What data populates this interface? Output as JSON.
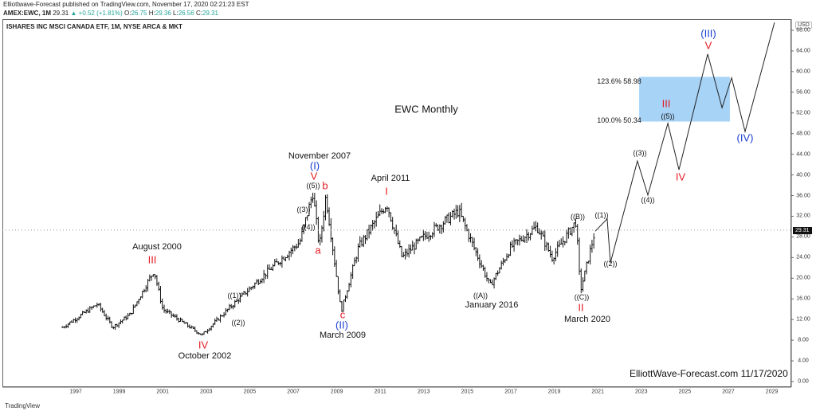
{
  "header": {
    "line1": "Elliottwave-Forecast published on TradingView.com, November 17, 2020 02:21:23 EST",
    "symbol": "AMEX:EWC, 1M",
    "last": "29.31",
    "change": "▲ +0.52 (+1.81%)",
    "o_label": "O:",
    "o": "26.75",
    "h_label": "H:",
    "h": "29.36",
    "l_label": "L:",
    "l": "26.56",
    "c_label": "C:",
    "c": "29.31"
  },
  "chart_title": "ISHARES INC MSCI CANADA ETF, 1M, NYSE ARCA & MKT",
  "currency": "USD",
  "price_tag": "29.31",
  "watermark": "ElliottWave-Forecast.com 11/17/2020",
  "footer": "TradingView",
  "labels": {
    "august_2000": "August 2000",
    "iii_2000": "III",
    "oct_2002": "October 2002",
    "iv_2002": "IV",
    "nov_2007": "November 2007",
    "wave_I_blue": "(I)",
    "v_2007": "V",
    "w5_2007": "((5))",
    "b": "b",
    "w3_2007": "((3))",
    "w4_2007": "((4))",
    "a": "a",
    "c": "c",
    "wave_II_blue": "(II)",
    "mar_2009": "March 2009",
    "apr_2011": "April 2011",
    "i_2011": "I",
    "w1_2004": "((1))",
    "w2_2004": "((2))",
    "wA": "((A))",
    "jan_2016": "January 2016",
    "wB": "((B))",
    "w1_2020": "((1))",
    "wC": "((C))",
    "ii_2020": "II",
    "mar_2020": "March 2020",
    "w2_proj": "((2))",
    "w3_proj": "((3))",
    "w4_proj": "((4))",
    "iii_proj": "III",
    "w5_proj": "((5))",
    "iv_proj": "IV",
    "v_proj": "V",
    "wave_III_blue": "(III)",
    "wave_IV_blue": "(IV)",
    "ewc_monthly": "EWC Monthly",
    "fib_1236": "123.6% 58.98",
    "fib_100": "100.0% 50.34"
  },
  "chart_data": {
    "type": "ohlc-bar",
    "title": "EWC Monthly",
    "xlabel": "",
    "ylabel": "USD",
    "x_ticks": [
      "1997",
      "1999",
      "2001",
      "2003",
      "2005",
      "2007",
      "2009",
      "2011",
      "2013",
      "2015",
      "2017",
      "2019",
      "2021",
      "2023",
      "2025",
      "2027",
      "2029"
    ],
    "y_ticks": [
      "0.00",
      "4.00",
      "8.00",
      "12.00",
      "16.00",
      "20.00",
      "24.00",
      "28.00",
      "32.00",
      "36.00",
      "40.00",
      "44.00",
      "48.00",
      "52.00",
      "56.00",
      "60.00",
      "64.00",
      "68.00"
    ],
    "ylim": [
      0,
      68
    ],
    "xlim": [
      1996,
      2030.3
    ],
    "price_path": [
      [
        1996.4,
        10.5
      ],
      [
        1998.0,
        15.0
      ],
      [
        1998.7,
        10.5
      ],
      [
        1999.5,
        13
      ],
      [
        2000.6,
        21.5
      ],
      [
        2001.0,
        14
      ],
      [
        2002.8,
        9
      ],
      [
        2004,
        14
      ],
      [
        2006,
        22
      ],
      [
        2007.3,
        27
      ],
      [
        2007.9,
        36.5
      ],
      [
        2008.2,
        26
      ],
      [
        2008.5,
        36
      ],
      [
        2009.2,
        13.5
      ],
      [
        2010,
        26
      ],
      [
        2011.3,
        34.5
      ],
      [
        2012,
        24
      ],
      [
        2013,
        28
      ],
      [
        2014.6,
        33
      ],
      [
        2016.05,
        18.5
      ],
      [
        2017,
        26
      ],
      [
        2018.2,
        30
      ],
      [
        2018.9,
        24
      ],
      [
        2020.0,
        31
      ],
      [
        2020.2,
        17.5
      ],
      [
        2020.88,
        29.31
      ]
    ],
    "projection": [
      [
        2020.88,
        29.1
      ],
      [
        2021.43,
        31.5
      ],
      [
        2021.58,
        23.0
      ],
      [
        2022.82,
        42.7
      ],
      [
        2023.3,
        36.1
      ],
      [
        2024.22,
        50.0
      ],
      [
        2024.73,
        41.0
      ],
      [
        2026.05,
        63.4
      ],
      [
        2026.71,
        53.0
      ],
      [
        2027.15,
        58.8
      ],
      [
        2027.77,
        48.4
      ],
      [
        2029.12,
        69.5
      ]
    ],
    "target_zone": {
      "from_year": 2022.9,
      "to_year": 2027.07,
      "low": 50.34,
      "high": 58.98,
      "color": "#a7d3f7"
    }
  }
}
